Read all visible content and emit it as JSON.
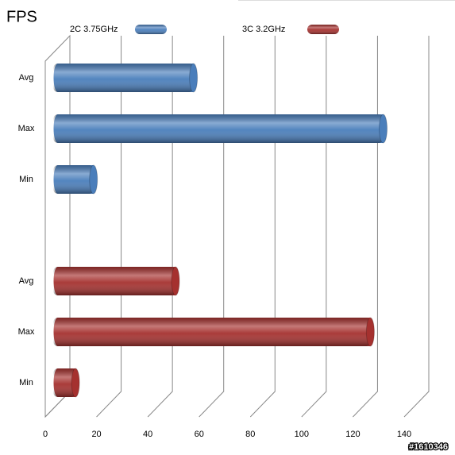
{
  "chart_data": {
    "type": "bar",
    "orientation": "horizontal",
    "title": "FPS",
    "categories": [
      "Avg",
      "Max",
      "Min",
      null,
      "Avg",
      "Max",
      "Min"
    ],
    "series": [
      {
        "name": "2C 3.75GHz",
        "color": "#4a7ebb",
        "values": [
          53,
          127,
          14,
          null,
          null,
          null,
          null
        ]
      },
      {
        "name": "3C 3.2GHz",
        "color": "#a5312f",
        "values": [
          null,
          null,
          null,
          null,
          46,
          122,
          7
        ]
      }
    ],
    "xlim": [
      0,
      140
    ],
    "xticks": [
      0,
      20,
      40,
      60,
      80,
      100,
      120,
      140
    ],
    "grid": true,
    "legend": "top",
    "watermark": "#1610346"
  }
}
